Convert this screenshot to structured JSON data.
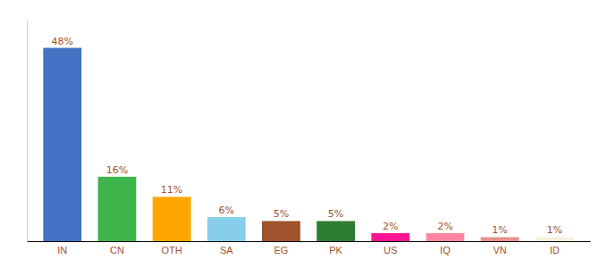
{
  "chart_data": {
    "type": "bar",
    "categories": [
      "IN",
      "CN",
      "OTH",
      "SA",
      "EG",
      "PK",
      "US",
      "IQ",
      "VN",
      "ID"
    ],
    "values": [
      48,
      16,
      11,
      6,
      5,
      5,
      2,
      2,
      1,
      1
    ],
    "value_labels": [
      "48%",
      "16%",
      "11%",
      "6%",
      "5%",
      "5%",
      "2%",
      "2%",
      "1%",
      "1%"
    ],
    "colors": [
      "#4472C4",
      "#3DB54A",
      "#FFA500",
      "#87CEEB",
      "#A0522D",
      "#2E7D32",
      "#FF1493",
      "#FF85A2",
      "#E8908A",
      "#F5F0DC"
    ],
    "ylim": [
      0,
      55
    ],
    "data_labels": true,
    "tick_labels": "x",
    "grid": false
  }
}
